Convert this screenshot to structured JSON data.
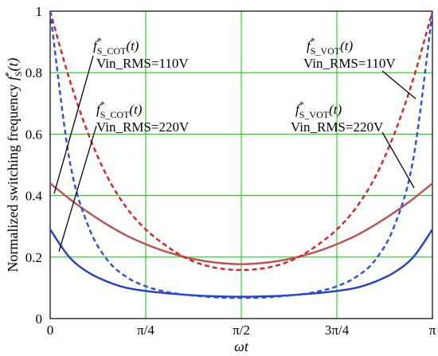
{
  "chart_data": {
    "type": "line",
    "xlabel": "ωt",
    "ylabel": "Normalized switching frequency f*S(t)",
    "xlim": [
      0,
      3.14159
    ],
    "ylim": [
      0,
      1
    ],
    "x_ticks": [
      "0",
      "π/4",
      "π/2",
      "3π/4",
      "π"
    ],
    "y_ticks": [
      "0",
      "0.2",
      "0.4",
      "0.6",
      "0.8",
      "1"
    ],
    "grid": true,
    "series": [
      {
        "name": "f*S_COT(t) Vin_RMS=110V",
        "color": "#c0504d",
        "style": "solid",
        "x": [
          0,
          0.1571,
          0.3142,
          0.4712,
          0.6283,
          0.7854,
          0.9425,
          1.0996,
          1.2566,
          1.4137,
          1.5708,
          1.7279,
          1.885,
          2.042,
          2.1991,
          2.3562,
          2.5133,
          2.6704,
          2.8274,
          2.9845,
          3.1416
        ],
        "values": [
          0.44,
          0.39,
          0.345,
          0.305,
          0.27,
          0.242,
          0.219,
          0.201,
          0.188,
          0.18,
          0.177,
          0.18,
          0.188,
          0.201,
          0.219,
          0.242,
          0.27,
          0.305,
          0.345,
          0.39,
          0.44
        ]
      },
      {
        "name": "f*S_COT(t) Vin_RMS=220V",
        "color": "#1f3fd1",
        "style": "solid",
        "x": [
          0,
          0.1571,
          0.3142,
          0.4712,
          0.6283,
          0.7854,
          0.9425,
          1.0996,
          1.2566,
          1.4137,
          1.5708,
          1.7279,
          1.885,
          2.042,
          2.1991,
          2.3562,
          2.5133,
          2.6704,
          2.8274,
          2.9845,
          3.1416
        ],
        "values": [
          0.29,
          0.2,
          0.15,
          0.12,
          0.1,
          0.09,
          0.083,
          0.078,
          0.074,
          0.072,
          0.071,
          0.072,
          0.074,
          0.078,
          0.083,
          0.09,
          0.1,
          0.12,
          0.15,
          0.2,
          0.29
        ]
      },
      {
        "name": "f*S_VOT(t) Vin_RMS=110V",
        "color": "#e02020",
        "style": "dashed",
        "x": [
          0,
          0.1571,
          0.3142,
          0.4712,
          0.6283,
          0.7854,
          0.9425,
          1.0996,
          1.2566,
          1.4137,
          1.5708,
          1.7279,
          1.885,
          2.042,
          2.1991,
          2.3562,
          2.5133,
          2.6704,
          2.8274,
          2.9845,
          3.1416
        ],
        "values": [
          1.0,
          0.78,
          0.6,
          0.46,
          0.36,
          0.29,
          0.24,
          0.2,
          0.175,
          0.162,
          0.158,
          0.162,
          0.175,
          0.2,
          0.24,
          0.29,
          0.36,
          0.46,
          0.6,
          0.78,
          1.0
        ]
      },
      {
        "name": "f*S_VOT(t) Vin_RMS=220V",
        "color": "#2a4fe0",
        "style": "dashed",
        "x": [
          0,
          0.1571,
          0.3142,
          0.4712,
          0.6283,
          0.7854,
          0.9425,
          1.0996,
          1.2566,
          1.4137,
          1.5708,
          1.7279,
          1.885,
          2.042,
          2.1991,
          2.3562,
          2.5133,
          2.6704,
          2.8274,
          2.9845,
          3.1416
        ],
        "values": [
          1.0,
          0.52,
          0.3,
          0.19,
          0.135,
          0.105,
          0.088,
          0.078,
          0.072,
          0.068,
          0.067,
          0.068,
          0.072,
          0.078,
          0.088,
          0.105,
          0.135,
          0.19,
          0.3,
          0.52,
          1.0
        ]
      }
    ],
    "annotations": [
      {
        "label": "f",
        "sup": "*",
        "sub": "S_COT",
        "arg": "(t)",
        "line2": "Vin_RMS=110V"
      },
      {
        "label": "f",
        "sup": "*",
        "sub": "S_COT",
        "arg": "(t)",
        "line2": "Vin_RMS=220V"
      },
      {
        "label": "f",
        "sup": "*",
        "sub": "S_VOT",
        "arg": "(t)",
        "line2": "Vin_RMS=110V"
      },
      {
        "label": "f",
        "sup": "*",
        "sub": "S_VOT",
        "arg": "(t)",
        "line2": "Vin_RMS=220V"
      }
    ],
    "ylabel_parts": {
      "text": "Normalized switching frequency ",
      "f": "f",
      "sup": "*",
      "sub": "S",
      "arg": "(t)"
    }
  }
}
